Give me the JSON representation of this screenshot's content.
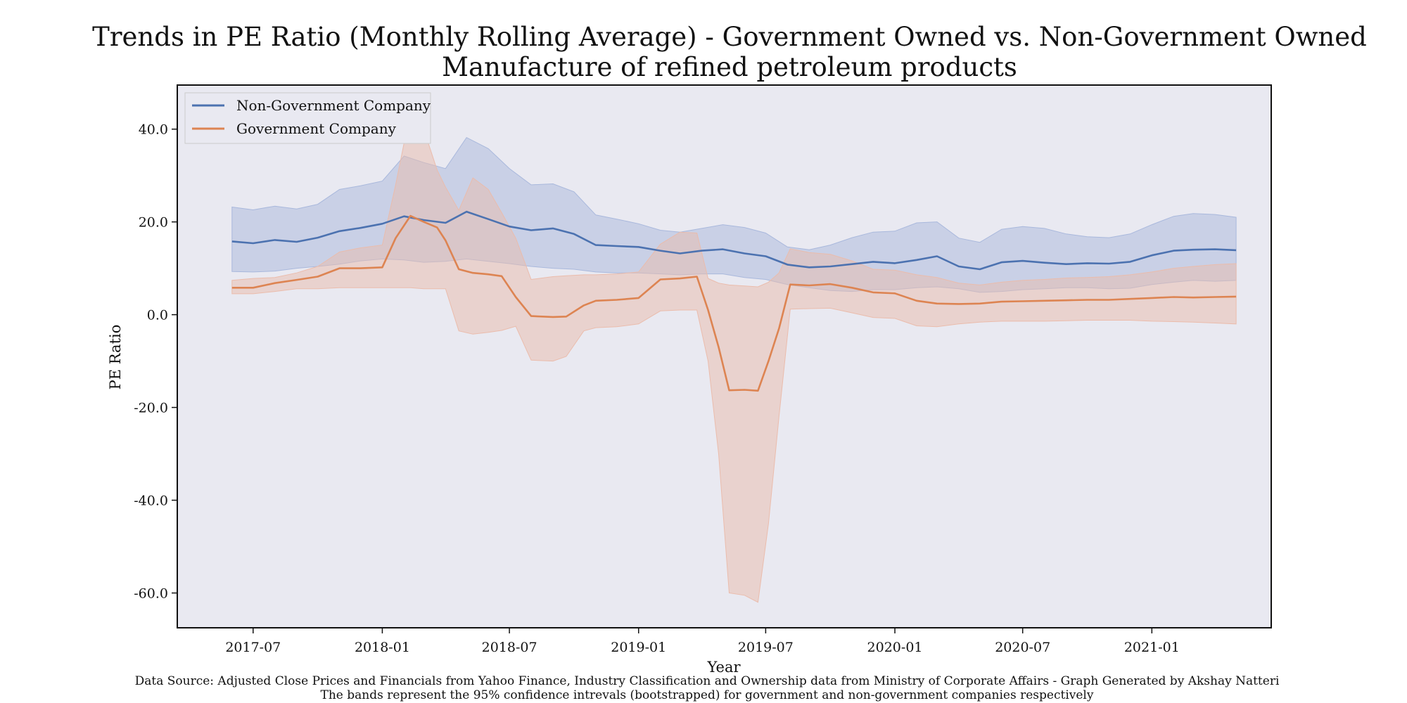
{
  "chart_data": {
    "type": "line",
    "title": "Trends in PE Ratio (Monthly Rolling Average) - Government Owned vs. Non-Government Owned",
    "subtitle": "Manufacture of refined petroleum products",
    "xlabel": "Year",
    "ylabel": "PE Ratio",
    "x_tick_labels": [
      "2017-07",
      "2018-01",
      "2018-07",
      "2019-01",
      "2019-07",
      "2020-01",
      "2020-07",
      "2021-01"
    ],
    "y_tick_labels": [
      "40.0",
      "20.0",
      "0.0",
      "-20.0",
      "-40.0",
      "-60.0"
    ],
    "y_ticks": [
      40,
      20,
      0,
      -20,
      -40,
      -60
    ],
    "x_range": [
      "2017-03-15",
      "2021-06-20"
    ],
    "ylim": [
      -67.5,
      49.5
    ],
    "grid": false,
    "legend_position": "top-left",
    "background_color": "#e9e9f1",
    "caption": [
      "Data Source: Adjusted Close Prices and Financials from Yahoo Finance, Industry Classification and Ownership data from Ministry of Corporate Affairs  - Graph Generated by Akshay Natteri",
      "The bands represent the 95% confidence intrevals (bootstrapped) for government and non-government companies respectively"
    ],
    "series": [
      {
        "name": "Non-Government Company",
        "color": "#4c72b0",
        "band_color": "#a9b8dc",
        "points": [
          {
            "x": "2017-06-01",
            "y": 15.8,
            "lo": 9.3,
            "hi": 23.2
          },
          {
            "x": "2017-07-01",
            "y": 15.4,
            "lo": 9.2,
            "hi": 22.6
          },
          {
            "x": "2017-08-01",
            "y": 16.1,
            "lo": 9.4,
            "hi": 23.4
          },
          {
            "x": "2017-09-01",
            "y": 15.7,
            "lo": 10.0,
            "hi": 22.8
          },
          {
            "x": "2017-10-01",
            "y": 16.6,
            "lo": 10.4,
            "hi": 23.8
          },
          {
            "x": "2017-11-01",
            "y": 18.0,
            "lo": 10.9,
            "hi": 27.0
          },
          {
            "x": "2017-12-01",
            "y": 18.7,
            "lo": 11.6,
            "hi": 27.8
          },
          {
            "x": "2018-01-01",
            "y": 19.6,
            "lo": 12.0,
            "hi": 28.8
          },
          {
            "x": "2018-02-01",
            "y": 21.2,
            "lo": 11.8,
            "hi": 34.2
          },
          {
            "x": "2018-03-01",
            "y": 20.4,
            "lo": 11.3,
            "hi": 32.8
          },
          {
            "x": "2018-04-01",
            "y": 19.8,
            "lo": 11.5,
            "hi": 31.5
          },
          {
            "x": "2018-05-01",
            "y": 22.2,
            "lo": 12.0,
            "hi": 38.2
          },
          {
            "x": "2018-06-01",
            "y": 20.6,
            "lo": 11.5,
            "hi": 35.8
          },
          {
            "x": "2018-07-01",
            "y": 19.0,
            "lo": 11.0,
            "hi": 31.5
          },
          {
            "x": "2018-08-01",
            "y": 18.2,
            "lo": 10.4,
            "hi": 28.0
          },
          {
            "x": "2018-09-01",
            "y": 18.6,
            "lo": 10.0,
            "hi": 28.2
          },
          {
            "x": "2018-10-01",
            "y": 17.4,
            "lo": 9.8,
            "hi": 26.5
          },
          {
            "x": "2018-11-01",
            "y": 15.0,
            "lo": 9.2,
            "hi": 21.5
          },
          {
            "x": "2018-12-01",
            "y": 14.8,
            "lo": 9.0,
            "hi": 20.6
          },
          {
            "x": "2019-01-01",
            "y": 14.6,
            "lo": 9.0,
            "hi": 19.6
          },
          {
            "x": "2019-02-01",
            "y": 13.8,
            "lo": 8.8,
            "hi": 18.2
          },
          {
            "x": "2019-03-01",
            "y": 13.2,
            "lo": 8.6,
            "hi": 17.8
          },
          {
            "x": "2019-04-01",
            "y": 13.8,
            "lo": 8.8,
            "hi": 18.6
          },
          {
            "x": "2019-05-01",
            "y": 14.1,
            "lo": 8.8,
            "hi": 19.4
          },
          {
            "x": "2019-06-01",
            "y": 13.2,
            "lo": 8.0,
            "hi": 18.8
          },
          {
            "x": "2019-07-01",
            "y": 12.6,
            "lo": 7.6,
            "hi": 17.6
          },
          {
            "x": "2019-08-01",
            "y": 10.8,
            "lo": 6.5,
            "hi": 14.6
          },
          {
            "x": "2019-09-01",
            "y": 10.2,
            "lo": 5.8,
            "hi": 14.0
          },
          {
            "x": "2019-10-01",
            "y": 10.4,
            "lo": 5.2,
            "hi": 15.0
          },
          {
            "x": "2019-11-01",
            "y": 10.9,
            "lo": 5.0,
            "hi": 16.6
          },
          {
            "x": "2019-12-01",
            "y": 11.4,
            "lo": 5.4,
            "hi": 17.8
          },
          {
            "x": "2020-01-01",
            "y": 11.1,
            "lo": 5.4,
            "hi": 18.0
          },
          {
            "x": "2020-02-01",
            "y": 11.8,
            "lo": 5.8,
            "hi": 19.8
          },
          {
            "x": "2020-03-01",
            "y": 12.6,
            "lo": 6.0,
            "hi": 20.0
          },
          {
            "x": "2020-04-01",
            "y": 10.4,
            "lo": 5.6,
            "hi": 16.5
          },
          {
            "x": "2020-05-01",
            "y": 9.8,
            "lo": 4.8,
            "hi": 15.6
          },
          {
            "x": "2020-06-01",
            "y": 11.3,
            "lo": 5.0,
            "hi": 18.4
          },
          {
            "x": "2020-07-01",
            "y": 11.6,
            "lo": 5.4,
            "hi": 19.0
          },
          {
            "x": "2020-08-01",
            "y": 11.2,
            "lo": 5.6,
            "hi": 18.6
          },
          {
            "x": "2020-09-01",
            "y": 10.9,
            "lo": 5.8,
            "hi": 17.4
          },
          {
            "x": "2020-10-01",
            "y": 11.1,
            "lo": 5.8,
            "hi": 16.8
          },
          {
            "x": "2020-11-01",
            "y": 11.0,
            "lo": 5.6,
            "hi": 16.6
          },
          {
            "x": "2020-12-01",
            "y": 11.4,
            "lo": 5.7,
            "hi": 17.4
          },
          {
            "x": "2021-01-01",
            "y": 12.8,
            "lo": 6.5,
            "hi": 19.4
          },
          {
            "x": "2021-02-01",
            "y": 13.8,
            "lo": 7.0,
            "hi": 21.2
          },
          {
            "x": "2021-03-01",
            "y": 14.0,
            "lo": 7.4,
            "hi": 21.8
          },
          {
            "x": "2021-04-01",
            "y": 14.1,
            "lo": 7.2,
            "hi": 21.6
          },
          {
            "x": "2021-05-01",
            "y": 13.9,
            "lo": 7.4,
            "hi": 21.0
          }
        ]
      },
      {
        "name": "Government Company",
        "color": "#dd8452",
        "band_color": "#eabcac",
        "points": [
          {
            "x": "2017-06-01",
            "y": 5.8,
            "lo": 4.5,
            "hi": 7.4
          },
          {
            "x": "2017-07-01",
            "y": 5.8,
            "lo": 4.5,
            "hi": 7.8
          },
          {
            "x": "2017-08-01",
            "y": 6.8,
            "lo": 5.0,
            "hi": 8.0
          },
          {
            "x": "2017-09-01",
            "y": 7.5,
            "lo": 5.6,
            "hi": 9.0
          },
          {
            "x": "2017-10-01",
            "y": 8.2,
            "lo": 5.6,
            "hi": 10.4
          },
          {
            "x": "2017-11-01",
            "y": 10.0,
            "lo": 5.8,
            "hi": 13.5
          },
          {
            "x": "2017-12-01",
            "y": 10.0,
            "lo": 5.8,
            "hi": 14.4
          },
          {
            "x": "2018-01-01",
            "y": 10.2,
            "lo": 5.8,
            "hi": 15.0
          },
          {
            "x": "2018-01-20",
            "y": 16.5,
            "lo": 5.8,
            "hi": 28.0
          },
          {
            "x": "2018-02-10",
            "y": 21.3,
            "lo": 5.8,
            "hi": 43.8
          },
          {
            "x": "2018-03-01",
            "y": 20.0,
            "lo": 5.6,
            "hi": 40.0
          },
          {
            "x": "2018-03-20",
            "y": 18.8,
            "lo": 5.6,
            "hi": 31.2
          },
          {
            "x": "2018-04-01",
            "y": 16.0,
            "lo": 5.6,
            "hi": 27.5
          },
          {
            "x": "2018-04-20",
            "y": 9.8,
            "lo": -3.5,
            "hi": 22.5
          },
          {
            "x": "2018-05-10",
            "y": 9.0,
            "lo": -4.2,
            "hi": 29.5
          },
          {
            "x": "2018-06-01",
            "y": 8.7,
            "lo": -3.8,
            "hi": 27.0
          },
          {
            "x": "2018-06-20",
            "y": 8.3,
            "lo": -3.4,
            "hi": 22.0
          },
          {
            "x": "2018-07-10",
            "y": 3.8,
            "lo": -2.5,
            "hi": 16.5
          },
          {
            "x": "2018-08-01",
            "y": -0.3,
            "lo": -9.8,
            "hi": 7.6
          },
          {
            "x": "2018-09-01",
            "y": -0.5,
            "lo": -10.0,
            "hi": 8.2
          },
          {
            "x": "2018-09-20",
            "y": -0.4,
            "lo": -9.0,
            "hi": 8.4
          },
          {
            "x": "2018-10-15",
            "y": 2.0,
            "lo": -3.5,
            "hi": 8.6
          },
          {
            "x": "2018-11-01",
            "y": 3.0,
            "lo": -2.8,
            "hi": 8.6
          },
          {
            "x": "2018-12-01",
            "y": 3.2,
            "lo": -2.6,
            "hi": 8.8
          },
          {
            "x": "2019-01-01",
            "y": 3.6,
            "lo": -2.0,
            "hi": 9.2
          },
          {
            "x": "2019-02-01",
            "y": 7.6,
            "lo": 0.8,
            "hi": 15.2
          },
          {
            "x": "2019-03-01",
            "y": 7.8,
            "lo": 1.0,
            "hi": 17.8
          },
          {
            "x": "2019-03-25",
            "y": 8.2,
            "lo": 1.0,
            "hi": 17.6
          },
          {
            "x": "2019-04-10",
            "y": 1.0,
            "lo": -10.0,
            "hi": 7.8
          },
          {
            "x": "2019-04-25",
            "y": -7.0,
            "lo": -30.0,
            "hi": 6.8
          },
          {
            "x": "2019-05-10",
            "y": -16.3,
            "lo": -60.0,
            "hi": 6.4
          },
          {
            "x": "2019-06-01",
            "y": -16.2,
            "lo": -60.5,
            "hi": 6.2
          },
          {
            "x": "2019-06-20",
            "y": -16.4,
            "lo": -62.0,
            "hi": 6.0
          },
          {
            "x": "2019-07-05",
            "y": -10.0,
            "lo": -45.0,
            "hi": 7.0
          },
          {
            "x": "2019-07-20",
            "y": -3.0,
            "lo": -22.0,
            "hi": 9.0
          },
          {
            "x": "2019-08-05",
            "y": 6.5,
            "lo": 1.2,
            "hi": 14.2
          },
          {
            "x": "2019-09-01",
            "y": 6.3,
            "lo": 1.3,
            "hi": 13.4
          },
          {
            "x": "2019-10-01",
            "y": 6.6,
            "lo": 1.4,
            "hi": 13.0
          },
          {
            "x": "2019-11-01",
            "y": 5.8,
            "lo": 0.4,
            "hi": 11.6
          },
          {
            "x": "2019-12-01",
            "y": 4.8,
            "lo": -0.6,
            "hi": 9.8
          },
          {
            "x": "2020-01-01",
            "y": 4.6,
            "lo": -0.8,
            "hi": 9.6
          },
          {
            "x": "2020-02-01",
            "y": 3.0,
            "lo": -2.4,
            "hi": 8.6
          },
          {
            "x": "2020-03-01",
            "y": 2.4,
            "lo": -2.6,
            "hi": 8.0
          },
          {
            "x": "2020-04-01",
            "y": 2.3,
            "lo": -2.0,
            "hi": 6.8
          },
          {
            "x": "2020-05-01",
            "y": 2.4,
            "lo": -1.6,
            "hi": 6.4
          },
          {
            "x": "2020-06-01",
            "y": 2.8,
            "lo": -1.4,
            "hi": 7.0
          },
          {
            "x": "2020-07-01",
            "y": 2.9,
            "lo": -1.4,
            "hi": 7.4
          },
          {
            "x": "2020-08-01",
            "y": 3.0,
            "lo": -1.4,
            "hi": 7.6
          },
          {
            "x": "2020-09-01",
            "y": 3.1,
            "lo": -1.3,
            "hi": 7.9
          },
          {
            "x": "2020-10-01",
            "y": 3.2,
            "lo": -1.2,
            "hi": 8.0
          },
          {
            "x": "2020-11-01",
            "y": 3.2,
            "lo": -1.2,
            "hi": 8.2
          },
          {
            "x": "2020-12-01",
            "y": 3.4,
            "lo": -1.2,
            "hi": 8.6
          },
          {
            "x": "2021-01-01",
            "y": 3.6,
            "lo": -1.4,
            "hi": 9.2
          },
          {
            "x": "2021-02-01",
            "y": 3.8,
            "lo": -1.5,
            "hi": 10.0
          },
          {
            "x": "2021-03-01",
            "y": 3.7,
            "lo": -1.6,
            "hi": 10.4
          },
          {
            "x": "2021-04-01",
            "y": 3.8,
            "lo": -1.8,
            "hi": 10.8
          },
          {
            "x": "2021-05-01",
            "y": 3.9,
            "lo": -2.0,
            "hi": 11.0
          }
        ]
      }
    ]
  }
}
